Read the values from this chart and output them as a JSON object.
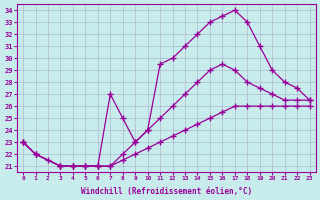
{
  "xlabel": "Windchill (Refroidissement éolien,°C)",
  "ylabel": "",
  "bg_color": "#c8ecec",
  "line_color": "#990099",
  "grid_color": "#aaaacc",
  "xlim": [
    -0.5,
    23.5
  ],
  "ylim": [
    20.5,
    34.5
  ],
  "yticks": [
    21,
    22,
    23,
    24,
    25,
    26,
    27,
    28,
    29,
    30,
    31,
    32,
    33,
    34
  ],
  "xticks": [
    0,
    1,
    2,
    3,
    4,
    5,
    6,
    7,
    8,
    9,
    10,
    11,
    12,
    13,
    14,
    15,
    16,
    17,
    18,
    19,
    20,
    21,
    22,
    23
  ],
  "line1_x": [
    0,
    1,
    2,
    3,
    4,
    5,
    6,
    7,
    8,
    9,
    10,
    11,
    12,
    13,
    14,
    15,
    16,
    17,
    18,
    19,
    20,
    21,
    22,
    23
  ],
  "line1_y": [
    23,
    22,
    21.5,
    21,
    21,
    21,
    21,
    21,
    21.5,
    22,
    22.5,
    23,
    23.5,
    24,
    24.5,
    25,
    25.5,
    26,
    26,
    26,
    26,
    26,
    26,
    26
  ],
  "line2_x": [
    0,
    1,
    3,
    4,
    5,
    6,
    7,
    8,
    9,
    10,
    11,
    12,
    13,
    14,
    15,
    16,
    17,
    18,
    19,
    20,
    21,
    22,
    23
  ],
  "line2_y": [
    23,
    22,
    21,
    21,
    21,
    21,
    21,
    22,
    23,
    24,
    25,
    26,
    27,
    28,
    29,
    29.5,
    29,
    28,
    27.5,
    27,
    26.5,
    26.5,
    26.5
  ],
  "line3_x": [
    0,
    1,
    3,
    4,
    5,
    6,
    7,
    8,
    9,
    10,
    11,
    12,
    13,
    14,
    15,
    16,
    17,
    18,
    19,
    20,
    21,
    22,
    23
  ],
  "line3_y": [
    23,
    22,
    21,
    21,
    21,
    21,
    27,
    25,
    23,
    24,
    29.5,
    30,
    31,
    32,
    33,
    33.5,
    34,
    33,
    31,
    29,
    28,
    27.5,
    26.5
  ]
}
